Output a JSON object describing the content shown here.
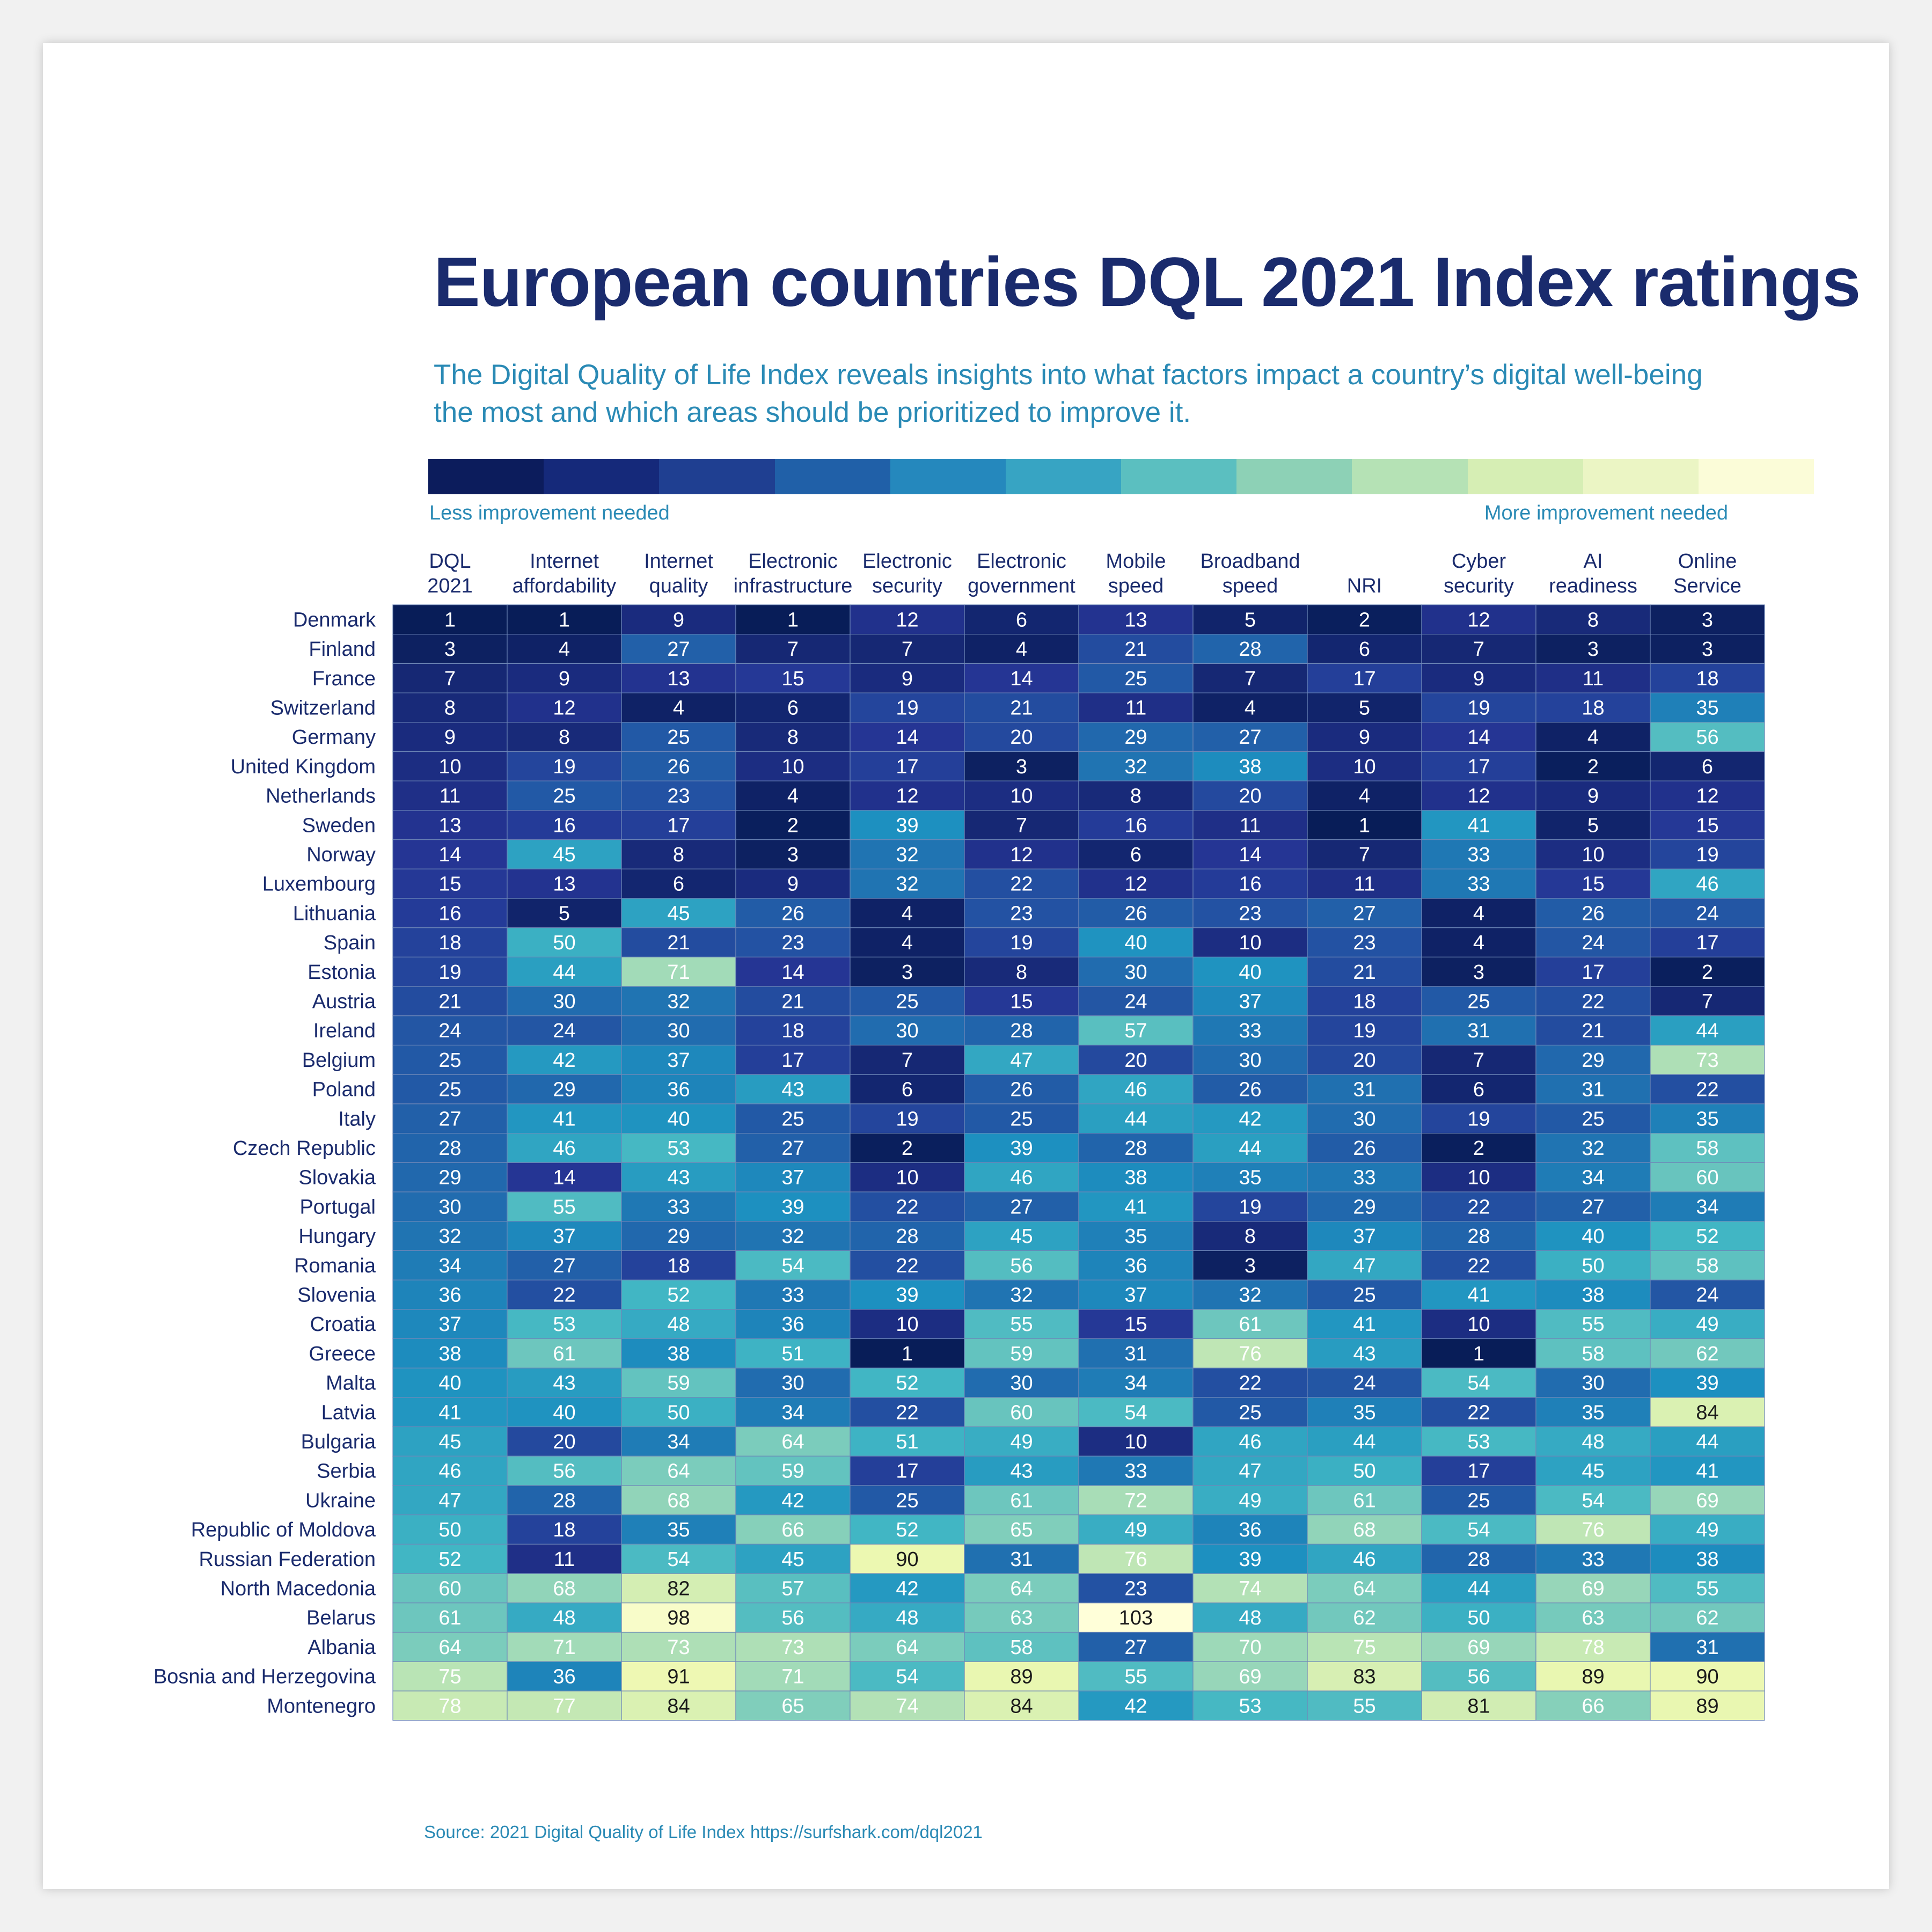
{
  "title": "European countries DQL 2021 Index ratings",
  "subtitle_line1": "The Digital Quality of Life Index reveals insights into what factors impact a country’s digital well-being",
  "subtitle_line2": "the most and which areas should be prioritized to improve it.",
  "scale": {
    "low_label": "Less improvement needed",
    "high_label": "More improvement needed",
    "colors": [
      "#0c1c5c",
      "#15297a",
      "#1f3f91",
      "#2060a8",
      "#2588bd",
      "#37a4c3",
      "#5bbfc0",
      "#8dd1b6",
      "#b5e2b5",
      "#d6eeb4",
      "#ebf5c4",
      "#fbfcd8"
    ]
  },
  "source": {
    "label": "Source: 2021 Digital Quality of Life Index",
    "url": "https://surfshark.com/dql2021"
  },
  "chart_data": {
    "type": "heatmap",
    "title": "European countries DQL 2021 Index ratings",
    "color_range": [
      1,
      103
    ],
    "columns": [
      [
        "DQL",
        "2021"
      ],
      [
        "Internet",
        "affordability"
      ],
      [
        "Internet",
        "quality"
      ],
      [
        "Electronic",
        "infrastructure"
      ],
      [
        "Electronic",
        "security"
      ],
      [
        "Electronic",
        "government"
      ],
      [
        "Mobile",
        "speed"
      ],
      [
        "Broadband",
        "speed"
      ],
      [
        "",
        "NRI"
      ],
      [
        "Cyber",
        "security"
      ],
      [
        "AI",
        "readiness"
      ],
      [
        "Online",
        "Service"
      ]
    ],
    "rows": [
      "Denmark",
      "Finland",
      "France",
      "Switzerland",
      "Germany",
      "United Kingdom",
      "Netherlands",
      "Sweden",
      "Norway",
      "Luxembourg",
      "Lithuania",
      "Spain",
      "Estonia",
      "Austria",
      "Ireland",
      "Belgium",
      "Poland",
      "Italy",
      "Czech Republic",
      "Slovakia",
      "Portugal",
      "Hungary",
      "Romania",
      "Slovenia",
      "Croatia",
      "Greece",
      "Malta",
      "Latvia",
      "Bulgaria",
      "Serbia",
      "Ukraine",
      "Republic of Moldova",
      "Russian Federation",
      "North Macedonia",
      "Belarus",
      "Albania",
      "Bosnia and Herzegovina",
      "Montenegro"
    ],
    "values": [
      [
        1,
        1,
        9,
        1,
        12,
        6,
        13,
        5,
        2,
        12,
        8,
        3
      ],
      [
        3,
        4,
        27,
        7,
        7,
        4,
        21,
        28,
        6,
        7,
        3,
        3
      ],
      [
        7,
        9,
        13,
        15,
        9,
        14,
        25,
        7,
        17,
        9,
        11,
        18
      ],
      [
        8,
        12,
        4,
        6,
        19,
        21,
        11,
        4,
        5,
        19,
        18,
        35
      ],
      [
        9,
        8,
        25,
        8,
        14,
        20,
        29,
        27,
        9,
        14,
        4,
        56
      ],
      [
        10,
        19,
        26,
        10,
        17,
        3,
        32,
        38,
        10,
        17,
        2,
        6
      ],
      [
        11,
        25,
        23,
        4,
        12,
        10,
        8,
        20,
        4,
        12,
        9,
        12
      ],
      [
        13,
        16,
        17,
        2,
        39,
        7,
        16,
        11,
        1,
        41,
        5,
        15
      ],
      [
        14,
        45,
        8,
        3,
        32,
        12,
        6,
        14,
        7,
        33,
        10,
        19
      ],
      [
        15,
        13,
        6,
        9,
        32,
        22,
        12,
        16,
        11,
        33,
        15,
        46
      ],
      [
        16,
        5,
        45,
        26,
        4,
        23,
        26,
        23,
        27,
        4,
        26,
        24
      ],
      [
        18,
        50,
        21,
        23,
        4,
        19,
        40,
        10,
        23,
        4,
        24,
        17
      ],
      [
        19,
        44,
        71,
        14,
        3,
        8,
        30,
        40,
        21,
        3,
        17,
        2
      ],
      [
        21,
        30,
        32,
        21,
        25,
        15,
        24,
        37,
        18,
        25,
        22,
        7
      ],
      [
        24,
        24,
        30,
        18,
        30,
        28,
        57,
        33,
        19,
        31,
        21,
        44
      ],
      [
        25,
        42,
        37,
        17,
        7,
        47,
        20,
        30,
        20,
        7,
        29,
        73
      ],
      [
        25,
        29,
        36,
        43,
        6,
        26,
        46,
        26,
        31,
        6,
        31,
        22
      ],
      [
        27,
        41,
        40,
        25,
        19,
        25,
        44,
        42,
        30,
        19,
        25,
        35
      ],
      [
        28,
        46,
        53,
        27,
        2,
        39,
        28,
        44,
        26,
        2,
        32,
        58
      ],
      [
        29,
        14,
        43,
        37,
        10,
        46,
        38,
        35,
        33,
        10,
        34,
        60
      ],
      [
        30,
        55,
        33,
        39,
        22,
        27,
        41,
        19,
        29,
        22,
        27,
        34
      ],
      [
        32,
        37,
        29,
        32,
        28,
        45,
        35,
        8,
        37,
        28,
        40,
        52
      ],
      [
        34,
        27,
        18,
        54,
        22,
        56,
        36,
        3,
        47,
        22,
        50,
        58
      ],
      [
        36,
        22,
        52,
        33,
        39,
        32,
        37,
        32,
        25,
        41,
        38,
        24
      ],
      [
        37,
        53,
        48,
        36,
        10,
        55,
        15,
        61,
        41,
        10,
        55,
        49
      ],
      [
        38,
        61,
        38,
        51,
        1,
        59,
        31,
        76,
        43,
        1,
        58,
        62
      ],
      [
        40,
        43,
        59,
        30,
        52,
        30,
        34,
        22,
        24,
        54,
        30,
        39
      ],
      [
        41,
        40,
        50,
        34,
        22,
        60,
        54,
        25,
        35,
        22,
        35,
        84
      ],
      [
        45,
        20,
        34,
        64,
        51,
        49,
        10,
        46,
        44,
        53,
        48,
        44
      ],
      [
        46,
        56,
        64,
        59,
        17,
        43,
        33,
        47,
        50,
        17,
        45,
        41
      ],
      [
        47,
        28,
        68,
        42,
        25,
        61,
        72,
        49,
        61,
        25,
        54,
        69
      ],
      [
        50,
        18,
        35,
        66,
        52,
        65,
        49,
        36,
        68,
        54,
        76,
        49
      ],
      [
        52,
        11,
        54,
        45,
        90,
        31,
        76,
        39,
        46,
        28,
        33,
        38
      ],
      [
        60,
        68,
        82,
        57,
        42,
        64,
        23,
        74,
        64,
        44,
        69,
        55
      ],
      [
        61,
        48,
        98,
        56,
        48,
        63,
        103,
        48,
        62,
        50,
        63,
        62
      ],
      [
        64,
        71,
        73,
        73,
        64,
        58,
        27,
        70,
        75,
        69,
        78,
        31
      ],
      [
        75,
        36,
        91,
        71,
        54,
        89,
        55,
        69,
        83,
        56,
        89,
        90
      ],
      [
        78,
        77,
        84,
        65,
        74,
        84,
        42,
        53,
        55,
        81,
        66,
        89
      ]
    ]
  }
}
